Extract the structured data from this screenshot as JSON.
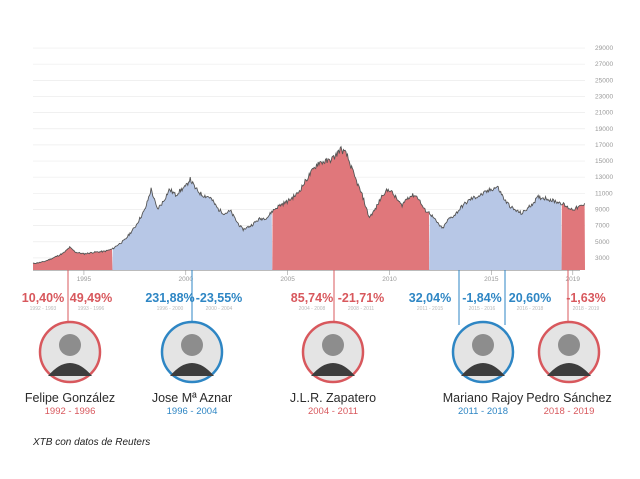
{
  "colors": {
    "red_fill": "#e0777b",
    "blue_fill": "#b7c7e6",
    "line": "#555555",
    "red_text": "#d8585d",
    "blue_text": "#2e86c4"
  },
  "chart_data": {
    "type": "area",
    "title": "",
    "xlabel": "",
    "ylabel": "",
    "xlim": [
      1992.5,
      2019.6
    ],
    "ylim": [
      1500,
      30000
    ],
    "y_ticks": [
      3000,
      5000,
      7000,
      9000,
      11000,
      13000,
      15000,
      17000,
      19000,
      21000,
      23000,
      25000,
      27000,
      29000
    ],
    "x_ticks": [
      "1995",
      "2000",
      "2005",
      "2010",
      "2015",
      "2019"
    ],
    "grid": "horizontal",
    "points": [
      [
        1992.5,
        2300
      ],
      [
        1993.0,
        2500
      ],
      [
        1993.5,
        3000
      ],
      [
        1994.0,
        3600
      ],
      [
        1994.3,
        4300
      ],
      [
        1994.6,
        3700
      ],
      [
        1995.0,
        3500
      ],
      [
        1995.5,
        3700
      ],
      [
        1996.0,
        3800
      ],
      [
        1996.4,
        4100
      ],
      [
        1996.6,
        4500
      ],
      [
        1997.0,
        5200
      ],
      [
        1997.5,
        6800
      ],
      [
        1998.0,
        9000
      ],
      [
        1998.3,
        11500
      ],
      [
        1998.6,
        9000
      ],
      [
        1998.9,
        10000
      ],
      [
        1999.2,
        11500
      ],
      [
        1999.5,
        10800
      ],
      [
        1999.8,
        11500
      ],
      [
        2000.0,
        11800
      ],
      [
        2000.2,
        12800
      ],
      [
        2000.5,
        11500
      ],
      [
        2000.8,
        10800
      ],
      [
        2001.2,
        10500
      ],
      [
        2001.6,
        9000
      ],
      [
        2001.9,
        8500
      ],
      [
        2002.2,
        8800
      ],
      [
        2002.5,
        7500
      ],
      [
        2002.8,
        6500
      ],
      [
        2003.2,
        7000
      ],
      [
        2003.6,
        7800
      ],
      [
        2004.0,
        8000
      ],
      [
        2004.25,
        8800
      ],
      [
        2004.6,
        9500
      ],
      [
        2005.0,
        10000
      ],
      [
        2005.5,
        11000
      ],
      [
        2006.0,
        13000
      ],
      [
        2006.5,
        14800
      ],
      [
        2007.0,
        15000
      ],
      [
        2007.3,
        15500
      ],
      [
        2007.6,
        16500
      ],
      [
        2007.9,
        15800
      ],
      [
        2008.3,
        13000
      ],
      [
        2008.7,
        10500
      ],
      [
        2009.0,
        8000
      ],
      [
        2009.3,
        9000
      ],
      [
        2009.7,
        11000
      ],
      [
        2010.0,
        11500
      ],
      [
        2010.3,
        10500
      ],
      [
        2010.6,
        9500
      ],
      [
        2010.9,
        10500
      ],
      [
        2011.2,
        10800
      ],
      [
        2011.4,
        10500
      ],
      [
        2011.7,
        9000
      ],
      [
        2012.0,
        8500
      ],
      [
        2012.3,
        7500
      ],
      [
        2012.6,
        6600
      ],
      [
        2012.9,
        7800
      ],
      [
        2013.2,
        8300
      ],
      [
        2013.6,
        9500
      ],
      [
        2014.0,
        10300
      ],
      [
        2014.5,
        10800
      ],
      [
        2015.0,
        11500
      ],
      [
        2015.3,
        11800
      ],
      [
        2015.7,
        10000
      ],
      [
        2016.1,
        9000
      ],
      [
        2016.5,
        8500
      ],
      [
        2016.9,
        9400
      ],
      [
        2017.3,
        10500
      ],
      [
        2017.7,
        10400
      ],
      [
        2018.0,
        10100
      ],
      [
        2018.3,
        9900
      ],
      [
        2018.45,
        9800
      ],
      [
        2018.7,
        9300
      ],
      [
        2019.0,
        9000
      ],
      [
        2019.3,
        9300
      ],
      [
        2019.6,
        9600
      ]
    ],
    "periods": [
      {
        "from": 1992.5,
        "to": 1996.4,
        "color": "red"
      },
      {
        "from": 1996.4,
        "to": 2004.25,
        "color": "blue"
      },
      {
        "from": 2004.25,
        "to": 2011.95,
        "color": "red"
      },
      {
        "from": 2011.95,
        "to": 2018.45,
        "color": "blue"
      },
      {
        "from": 2018.45,
        "to": 2019.6,
        "color": "red"
      }
    ]
  },
  "annotations": [
    {
      "pct": "10,40%",
      "sub": "1992 - 1993",
      "color": "red"
    },
    {
      "pct": "49,49%",
      "sub": "1993 - 1996",
      "color": "red"
    },
    {
      "pct": "231,88%",
      "sub": "1996 - 2000",
      "color": "blue"
    },
    {
      "pct": "-23,55%",
      "sub": "2000 - 2004",
      "color": "blue"
    },
    {
      "pct": "85,74%",
      "sub": "2004 - 2008",
      "color": "red"
    },
    {
      "pct": "-21,71%",
      "sub": "2008 - 2011",
      "color": "red"
    },
    {
      "pct": "32,04%",
      "sub": "2011 - 2015",
      "color": "blue"
    },
    {
      "pct": "-1,84%",
      "sub": "2015 - 2016",
      "color": "blue"
    },
    {
      "pct": "20,60%",
      "sub": "2016 - 2018",
      "color": "blue"
    },
    {
      "pct": "-1,63%",
      "sub": "2018 - 2019",
      "color": "red"
    }
  ],
  "leaders": [
    {
      "name": "Felipe González",
      "years": "1992 - 1996",
      "color": "red"
    },
    {
      "name": "Jose Mª Aznar",
      "years": "1996 - 2004",
      "color": "blue"
    },
    {
      "name": "J.L.R. Zapatero",
      "years": "2004 - 2011",
      "color": "red"
    },
    {
      "name": "Mariano Rajoy",
      "years": "2011 - 2018",
      "color": "blue"
    },
    {
      "name": "Pedro Sánchez",
      "years": "2018 - 2019",
      "color": "red"
    }
  ],
  "source": "XTB con datos de Reuters"
}
